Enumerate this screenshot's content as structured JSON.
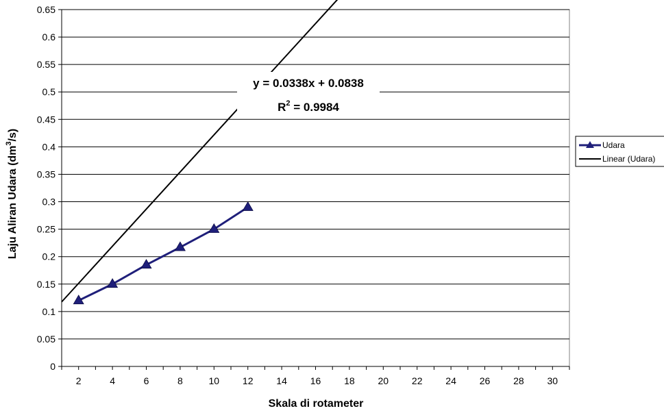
{
  "chart_data": {
    "type": "line",
    "title": "",
    "xlabel": "Skala di rotameter",
    "ylabel_prefix": "Laju Aliran Udara (dm",
    "ylabel_sup": "3",
    "ylabel_suffix": "/s)",
    "x_ticks": [
      "2",
      "4",
      "6",
      "8",
      "10",
      "12",
      "14",
      "16",
      "18",
      "20",
      "22",
      "24",
      "26",
      "28",
      "30"
    ],
    "y_ticks": [
      "0",
      "0.05",
      "0.1",
      "0.15",
      "0.2",
      "0.25",
      "0.3",
      "0.35",
      "0.4",
      "0.45",
      "0.5",
      "0.55",
      "0.6",
      "0.65"
    ],
    "xlim": [
      1,
      31
    ],
    "ylim": [
      0,
      0.65
    ],
    "grid": "horizontal",
    "legend_position": "right",
    "series": [
      {
        "name": "Udara",
        "x": [
          2,
          4,
          6,
          8,
          10,
          12
        ],
        "values": [
          0.12,
          0.15,
          0.185,
          0.217,
          0.25,
          0.29
        ],
        "color": "#1f1f7a",
        "marker": "triangle"
      }
    ],
    "trendline": {
      "name": "Linear (Udara)",
      "slope": 0.0338,
      "intercept": 0.0838,
      "x_range": [
        1,
        30
      ],
      "color": "#000000"
    },
    "equation_text": "y = 0.0338x + 0.0838",
    "r2_prefix": "R",
    "r2_sup": "2",
    "r2_value_text": " = 0.9984"
  }
}
